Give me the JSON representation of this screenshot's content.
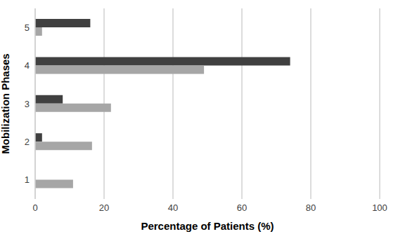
{
  "chart_data": {
    "type": "bar",
    "orientation": "horizontal",
    "categories": [
      "1",
      "2",
      "3",
      "4",
      "5"
    ],
    "series": [
      {
        "color": "#404040",
        "values": [
          0,
          2,
          8,
          74,
          16
        ]
      },
      {
        "color": "#a6a6a6",
        "values": [
          11,
          16.5,
          22,
          49,
          2
        ]
      }
    ],
    "xlabel": "Percentage of Patients  (%)",
    "ylabel": "Mobilization Phases",
    "xlim": [
      0,
      100
    ],
    "xticks": [
      0,
      20,
      40,
      60,
      80,
      100
    ],
    "grid": true
  }
}
